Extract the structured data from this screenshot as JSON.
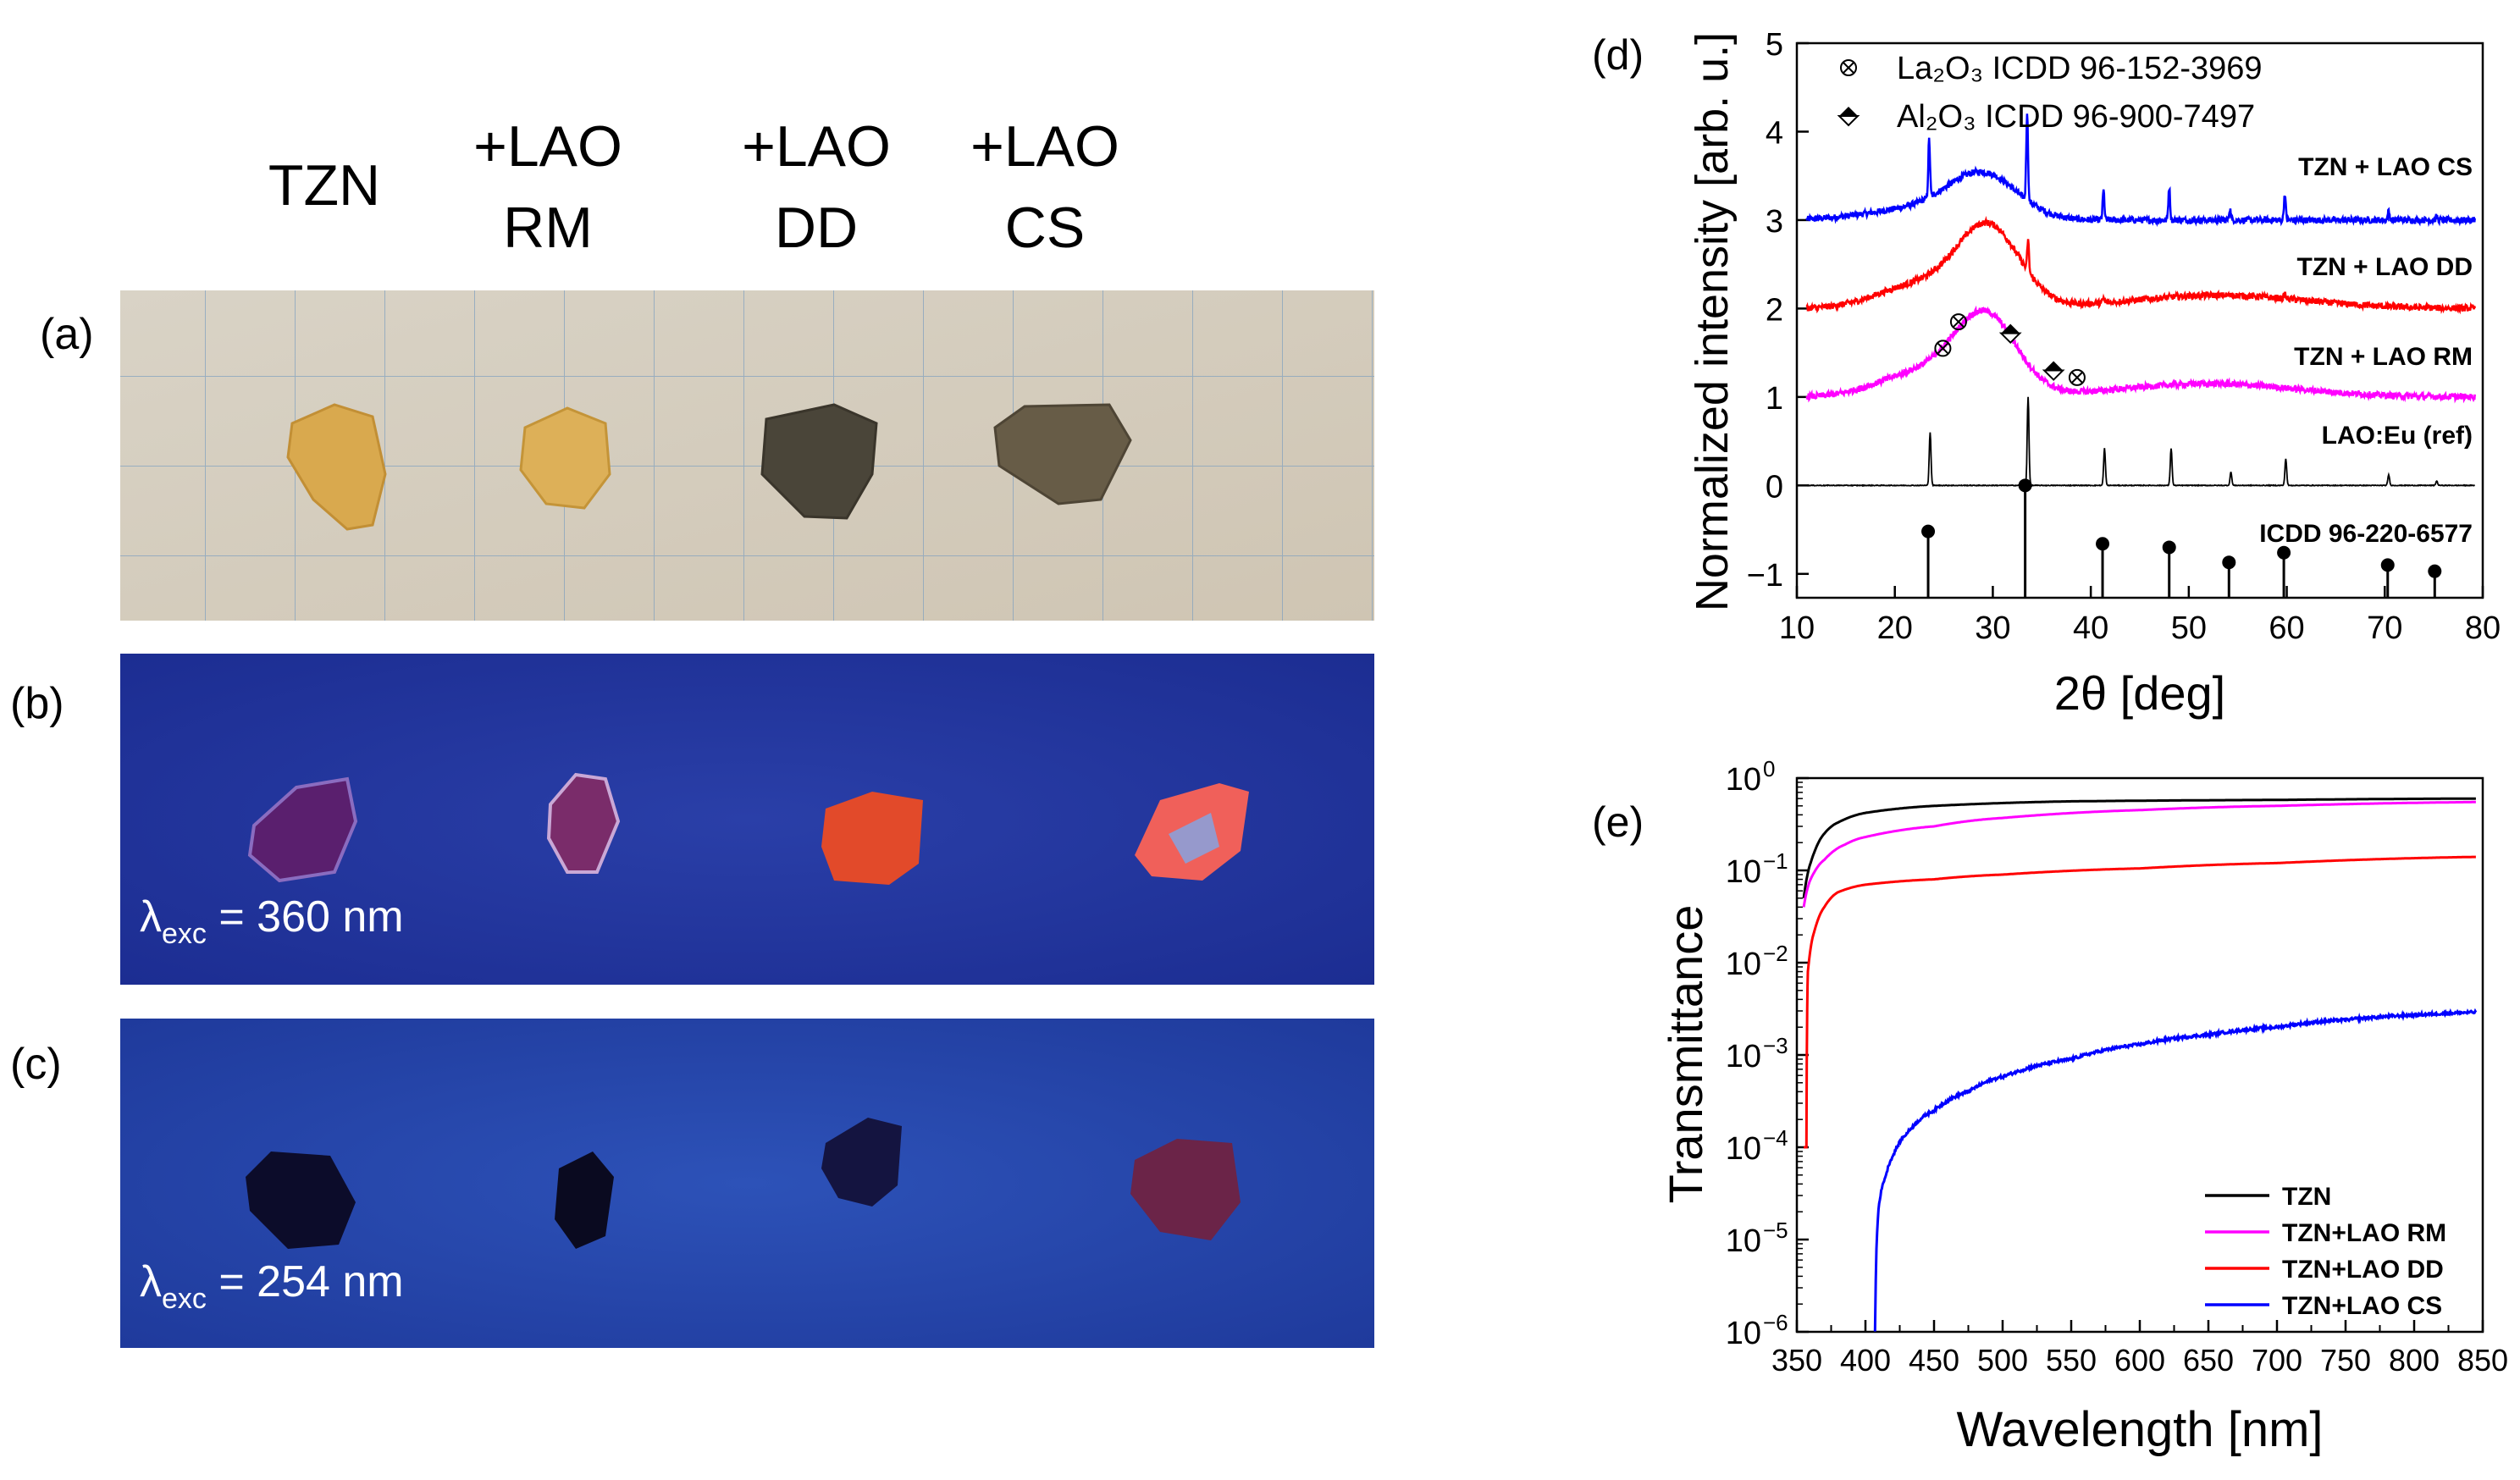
{
  "photos": {
    "headers": [
      {
        "line1": "TZN",
        "line2": ""
      },
      {
        "line1": "+LAO",
        "line2": "RM"
      },
      {
        "line1": "+LAO",
        "line2": "DD"
      },
      {
        "line1": "+LAO",
        "line2": "CS"
      }
    ],
    "panels": [
      {
        "label": "(a)",
        "excitation": null
      },
      {
        "label": "(b)",
        "excitation": {
          "symbol": "λ",
          "sub": "exc",
          "value": " = 360 nm"
        }
      },
      {
        "label": "(c)",
        "excitation": {
          "symbol": "λ",
          "sub": "exc",
          "value": " = 254 nm"
        }
      }
    ]
  },
  "chart_data": [
    {
      "panel": "(d)",
      "type": "line",
      "xlabel": "2θ [deg]",
      "ylabel": "Normalized intensity [arb. u.]",
      "xlim": [
        10,
        80
      ],
      "ylim": [
        -1.27,
        5
      ],
      "xticks": [
        10,
        20,
        30,
        40,
        50,
        60,
        70,
        80
      ],
      "yticks": [
        -1,
        0,
        1,
        2,
        3,
        4,
        5
      ],
      "legend": [
        {
          "label": "La₂O₃ ICDD 96-152-3969",
          "marker": "circle-x"
        },
        {
          "label": "Al₂O₃ ICDD 96-900-7497",
          "marker": "half-diamond"
        }
      ],
      "series": [
        {
          "name": "TZN + LAO CS",
          "color": "#0000ff",
          "offset": 3,
          "humps": [
            [
              22,
              0.12,
              5
            ],
            [
              29,
              0.5,
              3.5
            ]
          ],
          "peaks": [
            [
              23.5,
              0.65
            ],
            [
              33.5,
              1.0
            ],
            [
              41.3,
              0.33
            ],
            [
              48.0,
              0.37
            ],
            [
              54.2,
              0.13
            ],
            [
              59.8,
              0.3
            ],
            [
              70.4,
              0.1
            ],
            [
              75.3,
              0.04
            ]
          ]
        },
        {
          "name": "TZN + LAO DD",
          "color": "#ff0000",
          "offset": 2,
          "humps": [
            [
              22,
              0.25,
              4
            ],
            [
              29.5,
              0.92,
              3.2
            ],
            [
              53,
              0.15,
              9
            ]
          ],
          "peaks": [
            [
              33.6,
              0.35
            ],
            [
              41.3,
              0.05
            ],
            [
              59.8,
              0.05
            ]
          ]
        },
        {
          "name": "TZN + LAO RM",
          "color": "#ff00ff",
          "offset": 1,
          "humps": [
            [
              22,
              0.25,
              4
            ],
            [
              29.2,
              0.92,
              3.2
            ],
            [
              52,
              0.15,
              9
            ]
          ],
          "peaks": []
        },
        {
          "name": "LAO:Eu (ref)",
          "color": "#000000",
          "offset": 0,
          "humps": [],
          "peaks": [
            [
              23.6,
              0.6
            ],
            [
              33.6,
              1.0
            ],
            [
              41.4,
              0.42
            ],
            [
              48.2,
              0.42
            ],
            [
              54.3,
              0.15
            ],
            [
              59.9,
              0.3
            ],
            [
              70.4,
              0.12
            ],
            [
              75.3,
              0.05
            ]
          ]
        },
        {
          "name": "ICDD 96-220-6577",
          "color": "#000000",
          "type": "stick",
          "base": -1.27,
          "sticks": [
            [
              23.4,
              -0.52
            ],
            [
              33.3,
              0
            ],
            [
              41.2,
              -0.66
            ],
            [
              48.0,
              -0.7
            ],
            [
              54.1,
              -0.87
            ],
            [
              59.7,
              -0.76
            ],
            [
              70.3,
              -0.9
            ],
            [
              75.1,
              -0.97
            ]
          ]
        }
      ],
      "markers": {
        "La2O3": [
          [
            24.9,
            1.55
          ],
          [
            26.5,
            1.85
          ],
          [
            38.6,
            1.22
          ]
        ],
        "Al2O3": [
          [
            31.8,
            1.72
          ],
          [
            36.2,
            1.3
          ]
        ]
      }
    },
    {
      "panel": "(e)",
      "type": "line",
      "xlabel": "Wavelength [nm]",
      "ylabel": "Transmittance",
      "yscale": "log",
      "xlim": [
        350,
        850
      ],
      "ylim": [
        1e-06,
        1
      ],
      "xticks": [
        350,
        400,
        450,
        500,
        550,
        600,
        650,
        700,
        750,
        800,
        850
      ],
      "yticks_exponents": [
        0,
        -1,
        -2,
        -3,
        -4,
        -5,
        -6
      ],
      "legend_position": "bottom-right",
      "series": [
        {
          "name": "TZN",
          "color": "#000000",
          "x": [
            355,
            360,
            370,
            380,
            400,
            450,
            550,
            700,
            845
          ],
          "y": [
            0.05,
            0.12,
            0.25,
            0.33,
            0.42,
            0.5,
            0.56,
            0.58,
            0.6
          ]
        },
        {
          "name": "TZN+LAO RM",
          "color": "#ff00ff",
          "x": [
            355,
            360,
            370,
            385,
            400,
            450,
            500,
            600,
            700,
            845
          ],
          "y": [
            0.04,
            0.08,
            0.13,
            0.19,
            0.23,
            0.3,
            0.37,
            0.45,
            0.5,
            0.55
          ]
        },
        {
          "name": "TZN+LAO DD",
          "color": "#ff0000",
          "x": [
            355,
            357,
            357.5,
            358,
            362,
            370,
            380,
            400,
            450,
            500,
            600,
            700,
            845
          ],
          "y": [
            0.0001,
            0.0001,
            0.003,
            0.008,
            0.02,
            0.04,
            0.058,
            0.07,
            0.08,
            0.09,
            0.105,
            0.12,
            0.14
          ]
        },
        {
          "name": "TZN+LAO CS",
          "color": "#0000ff",
          "x": [
            407,
            408,
            410,
            415,
            420,
            430,
            450,
            475,
            500,
            550,
            600,
            650,
            700,
            750,
            800,
            845
          ],
          "y": [
            1e-06,
            8e-06,
            2.5e-05,
            5e-05,
            8e-05,
            0.00014,
            0.00025,
            0.0004,
            0.00058,
            0.0009,
            0.0013,
            0.00165,
            0.002,
            0.0024,
            0.0027,
            0.0029
          ]
        }
      ]
    }
  ]
}
